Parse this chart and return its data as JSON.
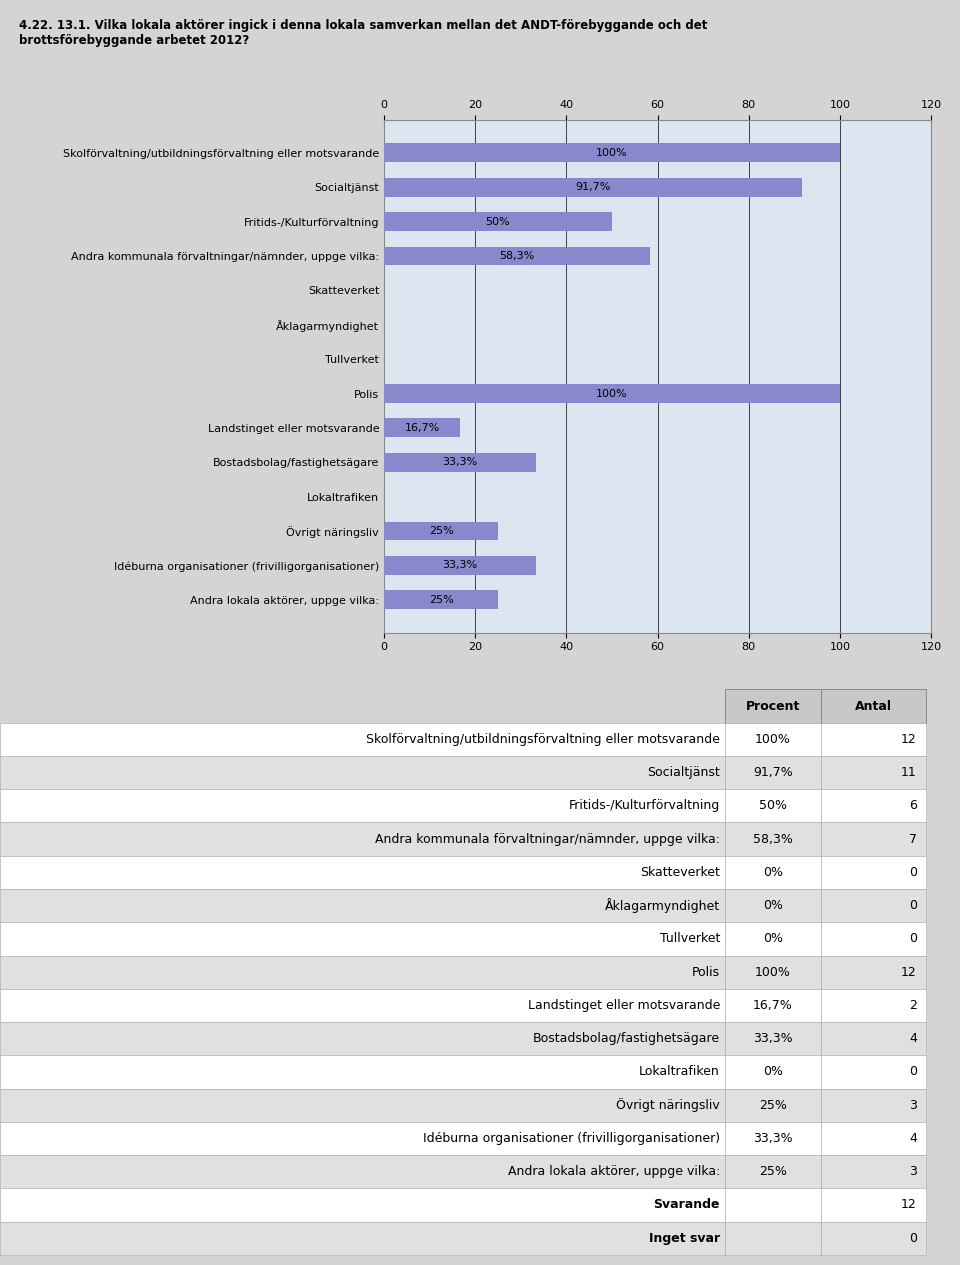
{
  "title": "4.22. 13.1. Vilka lokala aktörer ingick i denna lokala samverkan mellan det ANDT-förebyggande och det\nbrottsförebyggande arbetet 2012?",
  "categories": [
    "Skolförvaltning/utbildningsförvaltning eller motsvarande",
    "Socialtjänst",
    "Fritids-/Kulturförvaltning",
    "Andra kommunala förvaltningar/nämnder, uppge vilka:",
    "Skatteverket",
    "Åklagarmyndighet",
    "Tullverket",
    "Polis",
    "Landstinget eller motsvarande",
    "Bostadsbolag/fastighetsägare",
    "Lokaltrafiken",
    "Övrigt näringsliv",
    "Idéburna organisationer (frivilligorganisationer)",
    "Andra lokala aktörer, uppge vilka:"
  ],
  "values": [
    100,
    91.7,
    50,
    58.3,
    0,
    0,
    0,
    100,
    16.7,
    33.3,
    0,
    25,
    33.3,
    25
  ],
  "bar_labels": [
    "100%",
    "91,7%",
    "50%",
    "58,3%",
    "",
    "",
    "",
    "100%",
    "16,7%",
    "33,3%",
    "",
    "25%",
    "33,3%",
    "25%"
  ],
  "antal": [
    12,
    11,
    6,
    7,
    0,
    0,
    0,
    12,
    2,
    4,
    0,
    3,
    4,
    3
  ],
  "procent_str": [
    "100%",
    "91,7%",
    "50%",
    "58,3%",
    "0%",
    "0%",
    "0%",
    "100%",
    "16,7%",
    "33,3%",
    "0%",
    "25%",
    "33,3%",
    "25%"
  ],
  "bar_color": "#8888cc",
  "bg_color": "#d4d4d4",
  "chart_bg": "#dce6f1",
  "outer_bg": "#d4d4d4",
  "white_bg": "#ffffff",
  "xlim": [
    0,
    120
  ],
  "xticks": [
    0,
    20,
    40,
    60,
    80,
    100,
    120
  ],
  "svarande": 12,
  "inget_svar": 0,
  "table_row_alt1": "#e8e8e8",
  "table_row_alt2": "#d8d8d8",
  "table_header_bg": "#c8c8c8"
}
